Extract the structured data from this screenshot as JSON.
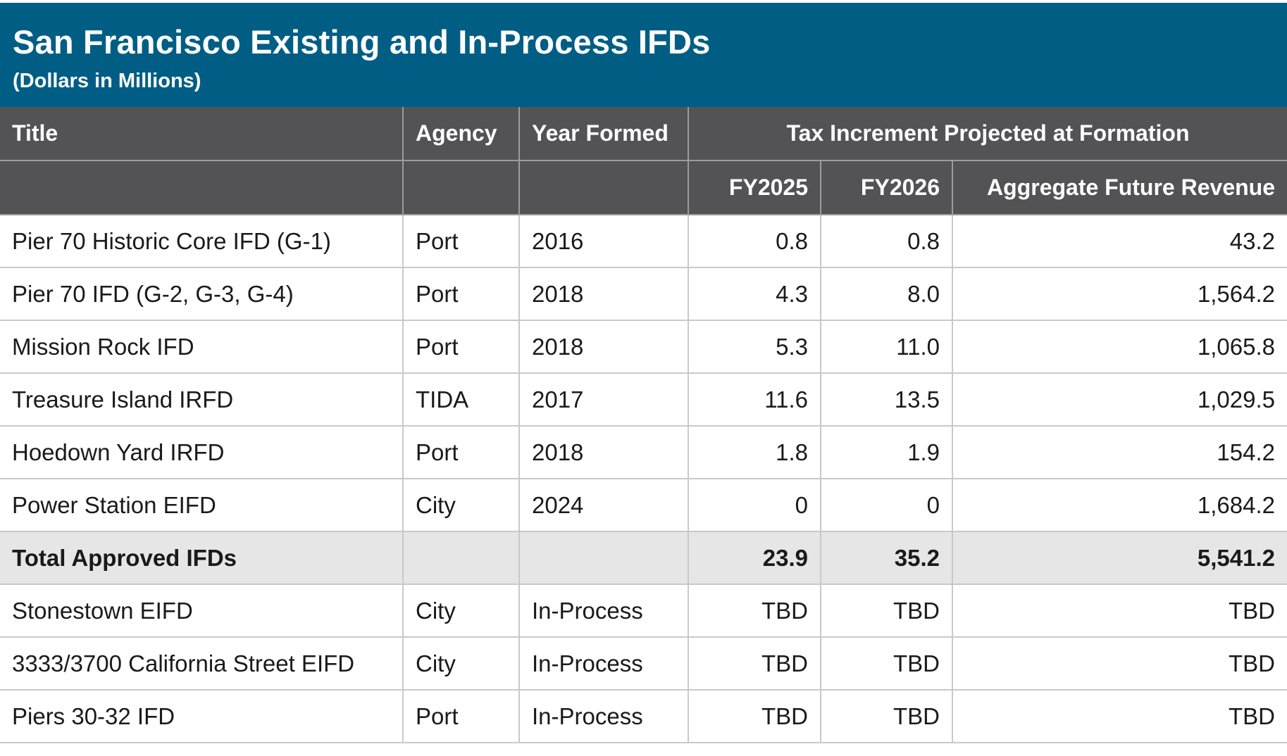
{
  "title": "San Francisco Existing and In-Process IFDs",
  "subtitle": "(Dollars in Millions)",
  "headers": {
    "title": "Title",
    "agency": "Agency",
    "year_formed": "Year Formed",
    "group": "Tax Increment Projected at Formation",
    "fy2025": "FY2025",
    "fy2026": "FY2026",
    "aggregate": "Aggregate Future Revenue"
  },
  "rows": [
    {
      "title": "Pier 70 Historic Core IFD (G-1)",
      "agency": "Port",
      "year": "2016",
      "fy2025": "0.8",
      "fy2026": "0.8",
      "aggregate": "43.2"
    },
    {
      "title": "Pier 70 IFD (G-2, G-3, G-4)",
      "agency": "Port",
      "year": "2018",
      "fy2025": "4.3",
      "fy2026": "8.0",
      "aggregate": "1,564.2"
    },
    {
      "title": "Mission Rock IFD",
      "agency": "Port",
      "year": "2018",
      "fy2025": "5.3",
      "fy2026": "11.0",
      "aggregate": "1,065.8"
    },
    {
      "title": "Treasure Island IRFD",
      "agency": "TIDA",
      "year": "2017",
      "fy2025": "11.6",
      "fy2026": "13.5",
      "aggregate": "1,029.5"
    },
    {
      "title": "Hoedown Yard IRFD",
      "agency": "Port",
      "year": "2018",
      "fy2025": "1.8",
      "fy2026": "1.9",
      "aggregate": "154.2"
    },
    {
      "title": "Power Station EIFD",
      "agency": "City",
      "year": "2024",
      "fy2025": "0",
      "fy2026": "0",
      "aggregate": "1,684.2"
    }
  ],
  "total": {
    "title": "Total Approved IFDs",
    "agency": "",
    "year": "",
    "fy2025": "23.9",
    "fy2026": "35.2",
    "aggregate": "5,541.2"
  },
  "in_process": [
    {
      "title": "Stonestown EIFD",
      "agency": "City",
      "year": "In-Process",
      "fy2025": "TBD",
      "fy2026": "TBD",
      "aggregate": "TBD"
    },
    {
      "title": "3333/3700 California Street EIFD",
      "agency": "City",
      "year": "In-Process",
      "fy2025": "TBD",
      "fy2026": "TBD",
      "aggregate": "TBD"
    },
    {
      "title": "Piers 30-32 IFD",
      "agency": "Port",
      "year": "In-Process",
      "fy2025": "TBD",
      "fy2026": "TBD",
      "aggregate": "TBD"
    }
  ]
}
